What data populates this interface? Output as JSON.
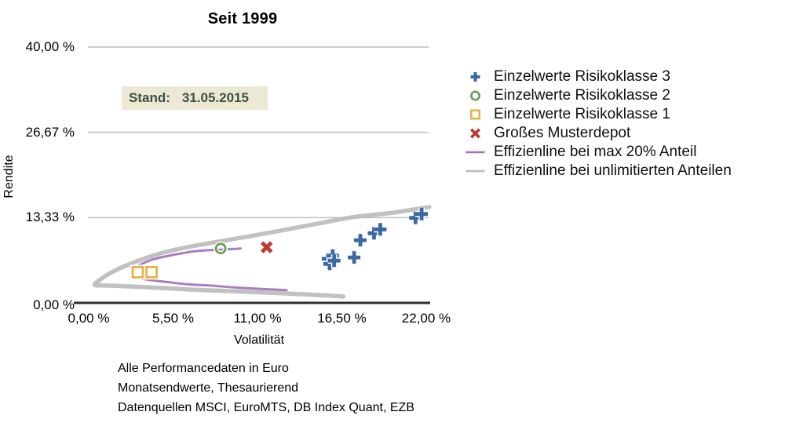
{
  "stand": {
    "label": "Stand:",
    "value": "31.05.2015"
  },
  "footer": {
    "lines": [
      "Alle Performancedaten in Euro",
      "Monatsendwerte, Thesaurierend",
      "Datenquellen MSCI, EuroMTS, DB Index Quant, EZB"
    ]
  },
  "colors": {
    "risk3_blue": "#3A69A3",
    "risk2_green": "#6B9E58",
    "risk1_orange": "#E8B24B",
    "musterdepot_red": "#BF3A32",
    "frontier_purple": "#A471BA",
    "frontier_gray": "#BCBCBC",
    "gridline": "#BFBFBF",
    "axis": "#2F2F2F",
    "stand_bg": "#EDE8D3",
    "stand_text": "#3C5244"
  },
  "chart_data": {
    "type": "scatter",
    "title": "Seit 1999",
    "xlabel": "Volatilität",
    "ylabel": "Rendite",
    "xlim": [
      0,
      22
    ],
    "ylim": [
      0,
      40
    ],
    "grid": true,
    "legend_position": "right",
    "x_ticks": [
      {
        "value": 0,
        "label": "0,00 %"
      },
      {
        "value": 5.5,
        "label": "5,50 %"
      },
      {
        "value": 11,
        "label": "11,00 %"
      },
      {
        "value": 16.5,
        "label": "16,50 %"
      },
      {
        "value": 22,
        "label": "22,00 %"
      }
    ],
    "y_ticks": [
      {
        "value": 0,
        "label": "0,00 %"
      },
      {
        "value": 13.333,
        "label": "13,33 %"
      },
      {
        "value": 26.667,
        "label": "26,67 %"
      },
      {
        "value": 40,
        "label": "40,00 %"
      }
    ],
    "series": [
      {
        "name": "Einzelwerte Risikoklasse 3",
        "marker": "plus",
        "color": "#3A69A3",
        "points": [
          [
            21.3,
            13.3
          ],
          [
            21.7,
            13.9
          ],
          [
            18.6,
            10.9
          ],
          [
            19.0,
            11.5
          ],
          [
            17.7,
            9.8
          ],
          [
            17.3,
            7.1
          ],
          [
            15.6,
            6.9
          ],
          [
            15.9,
            7.4
          ],
          [
            15.7,
            6.1
          ],
          [
            16.0,
            6.6
          ]
        ]
      },
      {
        "name": "Einzelwerte Risikoklasse 2",
        "marker": "circle",
        "color": "#6B9E58",
        "points": [
          [
            8.6,
            8.5
          ]
        ]
      },
      {
        "name": "Einzelwerte Risikoklasse 1",
        "marker": "square",
        "color": "#E8B24B",
        "points": [
          [
            3.2,
            4.8
          ],
          [
            4.1,
            4.8
          ]
        ]
      },
      {
        "name": "Großes Musterdepot",
        "marker": "x",
        "color": "#BF3A32",
        "points": [
          [
            11.6,
            8.7
          ]
        ]
      },
      {
        "name": "Effizienline bei max 20% Anteil",
        "marker": "line",
        "color": "#A471BA",
        "line_width": 3,
        "points": [
          [
            9.9,
            8.5
          ],
          [
            8.5,
            8.3
          ],
          [
            7.0,
            8.1
          ],
          [
            5.5,
            7.5
          ],
          [
            4.2,
            6.8
          ],
          [
            3.3,
            5.9
          ],
          [
            2.9,
            5.2
          ],
          [
            2.8,
            4.5
          ],
          [
            3.2,
            4.0
          ],
          [
            3.9,
            3.6
          ],
          [
            5.0,
            3.3
          ],
          [
            6.5,
            2.9
          ],
          [
            8.0,
            2.7
          ],
          [
            9.6,
            2.4
          ],
          [
            11.1,
            2.2
          ],
          [
            12.9,
            2.0
          ]
        ]
      },
      {
        "name": "Effizienline bei unlimitierten Anteilen",
        "marker": "line",
        "color": "#BCBCBC",
        "line_width": 5.5,
        "points": [
          [
            22.2,
            15.0
          ],
          [
            19.8,
            14.1
          ],
          [
            17.2,
            13.4
          ],
          [
            14.7,
            12.3
          ],
          [
            11.6,
            10.9
          ],
          [
            8.5,
            9.6
          ],
          [
            6.0,
            8.5
          ],
          [
            4.2,
            7.4
          ],
          [
            2.7,
            6.1
          ],
          [
            1.5,
            4.8
          ],
          [
            0.8,
            3.7
          ],
          [
            0.4,
            2.8
          ],
          [
            1.4,
            2.7
          ],
          [
            3.4,
            2.5
          ],
          [
            6.5,
            2.1
          ],
          [
            9.6,
            1.8
          ],
          [
            12.6,
            1.5
          ],
          [
            15.2,
            1.2
          ],
          [
            16.6,
            1.0
          ]
        ]
      }
    ]
  }
}
